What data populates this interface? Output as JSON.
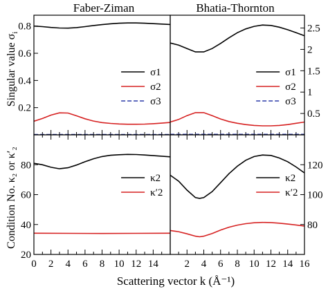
{
  "colors": {
    "black": "#000000",
    "red": "#d62020",
    "blue": "#2a3aa8",
    "background": "#ffffff"
  },
  "panel_titles": {
    "left": "Faber-Ziman",
    "right": "Bhatia-Thornton"
  },
  "axis_labels": {
    "y_top": "Singular value σ",
    "y_top_sub": "i",
    "y_bottom": "Condition No. κ₂ or κ′₂",
    "x": "Scattering vector k (Å⁻¹)"
  },
  "chart_data": [
    {
      "type": "line",
      "panel": "top-left",
      "title": "Faber-Ziman",
      "ylabel": "Singular value σi",
      "ylim": [
        0.0,
        0.88
      ],
      "xlim": [
        0,
        16
      ],
      "yticks": [
        0.2,
        0.4,
        0.6,
        0.8
      ],
      "ytick_labels": [
        "0.2",
        "0.4",
        "0.6",
        "0.8"
      ],
      "legend": {
        "placement": "right",
        "entries": [
          "σ1",
          "σ2",
          "σ3"
        ]
      },
      "series": [
        {
          "name": "σ1",
          "color": "#000000",
          "dash": "solid",
          "x": [
            0,
            1,
            2,
            3,
            4,
            5,
            6,
            7,
            8,
            9,
            10,
            11,
            12,
            13,
            14,
            15,
            16
          ],
          "y": [
            0.8,
            0.796,
            0.79,
            0.786,
            0.785,
            0.789,
            0.796,
            0.804,
            0.811,
            0.817,
            0.821,
            0.823,
            0.823,
            0.821,
            0.818,
            0.815,
            0.812
          ]
        },
        {
          "name": "σ2",
          "color": "#d62020",
          "dash": "solid",
          "x": [
            0,
            1,
            2,
            3,
            4,
            5,
            6,
            7,
            8,
            9,
            10,
            11,
            12,
            13,
            14,
            15,
            16
          ],
          "y": [
            0.1,
            0.12,
            0.145,
            0.162,
            0.16,
            0.14,
            0.118,
            0.101,
            0.09,
            0.084,
            0.08,
            0.078,
            0.078,
            0.079,
            0.082,
            0.086,
            0.091
          ]
        },
        {
          "name": "σ3",
          "color": "#2a3aa8",
          "dash": "dashed",
          "x": [
            0,
            16
          ],
          "y": [
            0.002,
            0.002
          ]
        }
      ]
    },
    {
      "type": "line",
      "panel": "top-right",
      "title": "Bhatia-Thornton",
      "ylabel": "",
      "ylim": [
        0.0,
        2.8
      ],
      "xlim": [
        0,
        16
      ],
      "y_axis_side": "right",
      "yticks": [
        0.5,
        1,
        1.5,
        2,
        2.5
      ],
      "ytick_labels": [
        "0.5",
        "1",
        "1.5",
        "2",
        "2.5"
      ],
      "legend": {
        "placement": "right",
        "entries": [
          "σ1",
          "σ2",
          "σ3"
        ]
      },
      "series": [
        {
          "name": "σ1",
          "color": "#000000",
          "dash": "solid",
          "x": [
            0,
            1,
            2,
            3,
            4,
            5,
            6,
            7,
            8,
            9,
            10,
            11,
            12,
            13,
            14,
            15,
            16
          ],
          "y": [
            2.15,
            2.1,
            2.02,
            1.94,
            1.94,
            2.02,
            2.14,
            2.27,
            2.39,
            2.48,
            2.54,
            2.57,
            2.56,
            2.52,
            2.46,
            2.39,
            2.32
          ]
        },
        {
          "name": "σ2",
          "color": "#d62020",
          "dash": "solid",
          "x": [
            0,
            1,
            2,
            3,
            4,
            5,
            6,
            7,
            8,
            9,
            10,
            11,
            12,
            13,
            14,
            15,
            16
          ],
          "y": [
            0.3,
            0.36,
            0.45,
            0.52,
            0.52,
            0.45,
            0.37,
            0.31,
            0.27,
            0.24,
            0.22,
            0.21,
            0.21,
            0.22,
            0.24,
            0.27,
            0.3
          ]
        },
        {
          "name": "σ3",
          "color": "#2a3aa8",
          "dash": "dashed",
          "x": [
            0,
            16
          ],
          "y": [
            0.01,
            0.01
          ]
        }
      ]
    },
    {
      "type": "line",
      "panel": "bottom-left",
      "xlabel": "Scattering vector k (Å⁻¹)",
      "ylabel": "Condition No. κ2 or κ′2",
      "xlim": [
        0,
        16
      ],
      "ylim": [
        20,
        100
      ],
      "xticks": [
        0,
        2,
        4,
        6,
        8,
        10,
        12,
        14
      ],
      "xtick_labels": [
        "0",
        "2",
        "4",
        "6",
        "8",
        "10",
        "12",
        "14"
      ],
      "yticks": [
        20,
        40,
        60,
        80
      ],
      "ytick_labels": [
        "20",
        "40",
        "60",
        "80"
      ],
      "legend": {
        "placement": "right",
        "entries": [
          "κ2",
          "κ′2"
        ]
      },
      "series": [
        {
          "name": "κ2",
          "color": "#000000",
          "dash": "solid",
          "x": [
            0,
            1,
            2,
            3,
            4,
            5,
            6,
            7,
            8,
            9,
            10,
            11,
            12,
            13,
            14,
            15,
            16
          ],
          "y": [
            81.0,
            80.0,
            78.3,
            77.3,
            78.0,
            79.8,
            82.0,
            84.0,
            85.5,
            86.3,
            86.7,
            86.9,
            86.8,
            86.5,
            86.1,
            85.7,
            85.3
          ]
        },
        {
          "name": "κ′2",
          "color": "#d62020",
          "dash": "solid",
          "x": [
            0,
            4,
            8,
            12,
            16
          ],
          "y": [
            34.2,
            34.1,
            34.0,
            34.1,
            34.2
          ]
        }
      ]
    },
    {
      "type": "line",
      "panel": "bottom-right",
      "xlabel": "Scattering vector k (Å⁻¹)",
      "xlim": [
        0,
        16
      ],
      "ylim": [
        60,
        140
      ],
      "y_axis_side": "right",
      "xticks": [
        2,
        4,
        6,
        8,
        10,
        12,
        14,
        16
      ],
      "xtick_labels": [
        "2",
        "4",
        "6",
        "8",
        "10",
        "12",
        "14",
        "16"
      ],
      "yticks": [
        80,
        100,
        120
      ],
      "ytick_labels": [
        "80",
        "100",
        "120"
      ],
      "legend": {
        "placement": "right",
        "entries": [
          "κ2",
          "κ′2"
        ]
      },
      "series": [
        {
          "name": "κ2",
          "color": "#000000",
          "dash": "solid",
          "x": [
            0,
            1,
            2,
            3,
            3.5,
            4,
            5,
            6,
            7,
            8,
            9,
            10,
            11,
            12,
            13,
            14,
            15,
            16
          ],
          "y": [
            113,
            109,
            103,
            98,
            97.5,
            98,
            102,
            108,
            114,
            119,
            123,
            125.5,
            126.5,
            126.2,
            124.5,
            122,
            118.5,
            114.5
          ]
        },
        {
          "name": "κ′2",
          "color": "#d62020",
          "dash": "solid",
          "x": [
            0,
            1,
            2,
            3,
            3.5,
            4,
            5,
            6,
            7,
            8,
            9,
            10,
            11,
            12,
            13,
            14,
            15,
            16
          ],
          "y": [
            76,
            75.2,
            73.8,
            72.2,
            71.8,
            72.2,
            74,
            76.3,
            78.2,
            79.6,
            80.6,
            81.2,
            81.4,
            81.3,
            80.9,
            80.3,
            79.7,
            79
          ]
        }
      ]
    }
  ]
}
